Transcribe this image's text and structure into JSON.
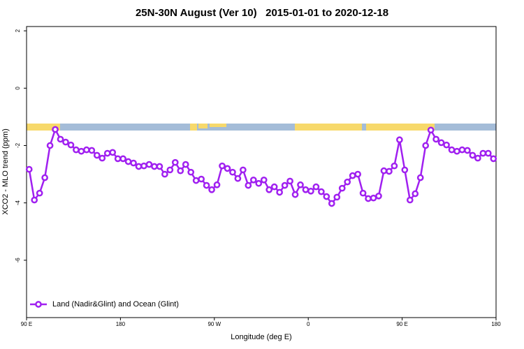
{
  "chart_data": {
    "type": "line",
    "title": "25N-30N August (Ver 10)   2015-01-01 to 2020-12-18",
    "x_label": "Longitude (deg E)",
    "y_label": "XCO2 - MLO trend (ppm)",
    "xlim": [
      90,
      540
    ],
    "ylim": [
      -8,
      2.15
    ],
    "xticks": [
      {
        "value": 90,
        "label": "90 E"
      },
      180,
      {
        "value": 270,
        "label": "90 W"
      },
      {
        "value": 360,
        "label": "0"
      },
      {
        "value": 450,
        "label": "90 E"
      },
      {
        "value": 540,
        "label": "180"
      }
    ],
    "yticks": [
      2,
      0,
      -2,
      -4,
      -6
    ],
    "legend": "bottom-left",
    "x": [
      92.5,
      97.5,
      102.5,
      107.5,
      112.5,
      117.5,
      122.5,
      127.5,
      132.5,
      137.5,
      142.5,
      147.5,
      152.5,
      157.5,
      162.5,
      167.5,
      172.5,
      177.5,
      182.5,
      187.5,
      192.5,
      197.5,
      202.5,
      207.5,
      212.5,
      217.5,
      222.5,
      227.5,
      232.5,
      237.5,
      242.5,
      247.5,
      252.5,
      257.5,
      262.5,
      267.5,
      272.5,
      277.5,
      282.5,
      287.5,
      292.5,
      297.5,
      302.5,
      307.5,
      312.5,
      317.5,
      322.5,
      327.5,
      332.5,
      337.5,
      342.5,
      347.5,
      352.5,
      357.5,
      362.5,
      367.5,
      372.5,
      377.5,
      382.5,
      387.5,
      392.5,
      397.5,
      402.5,
      407.5,
      412.5,
      417.5,
      422.5,
      427.5,
      432.5,
      437.5,
      442.5,
      447.5,
      452.5,
      457.5,
      462.5,
      467.5,
      472.5,
      477.5,
      482.5,
      487.5,
      492.5,
      497.5,
      502.5,
      507.5,
      512.5,
      517.5,
      522.5,
      527.5,
      532.5,
      537.5
    ],
    "series": [
      {
        "name": "Land (Nadir&Glint) and Ocean (Glint)",
        "color": "#a020f0",
        "values": [
          -2.83,
          -3.9,
          -3.66,
          -3.12,
          -2.0,
          -1.44,
          -1.78,
          -1.88,
          -1.98,
          -2.15,
          -2.2,
          -2.15,
          -2.17,
          -2.34,
          -2.44,
          -2.27,
          -2.24,
          -2.46,
          -2.46,
          -2.56,
          -2.61,
          -2.73,
          -2.71,
          -2.66,
          -2.73,
          -2.73,
          -3.0,
          -2.85,
          -2.59,
          -2.88,
          -2.66,
          -2.93,
          -3.22,
          -3.17,
          -3.39,
          -3.54,
          -3.37,
          -2.71,
          -2.8,
          -2.93,
          -3.15,
          -2.85,
          -3.39,
          -3.2,
          -3.32,
          -3.2,
          -3.54,
          -3.44,
          -3.63,
          -3.39,
          -3.24,
          -3.71,
          -3.37,
          -3.54,
          -3.59,
          -3.44,
          -3.61,
          -3.78,
          -4.02,
          -3.8,
          -3.49,
          -3.27,
          -3.05,
          -3.0,
          -3.66,
          -3.85,
          -3.83,
          -3.76,
          -2.88,
          -2.9,
          -2.71,
          -1.8,
          -2.85,
          -3.9,
          -3.68,
          -3.12,
          -2.0,
          -1.46,
          -1.78,
          -1.9,
          -1.98,
          -2.15,
          -2.2,
          -2.15,
          -2.17,
          -2.34,
          -2.44,
          -2.27,
          -2.27,
          -2.46
        ]
      }
    ]
  }
}
